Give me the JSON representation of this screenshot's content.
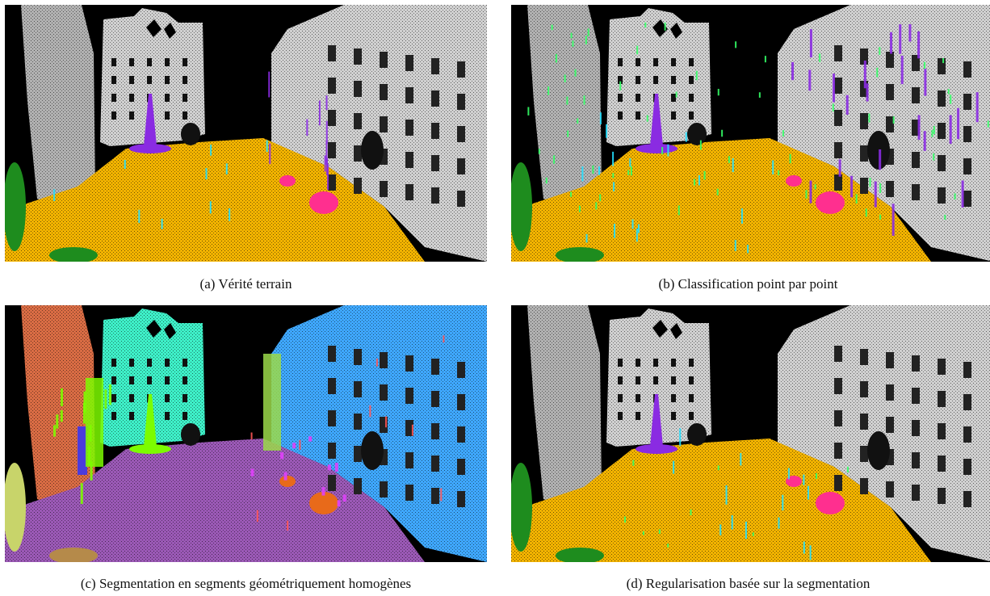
{
  "figure": {
    "panels": [
      {
        "caption": "(a) Vérité terrain",
        "scheme": "classes"
      },
      {
        "caption": "(b) Classification point par point",
        "scheme": "noisy"
      },
      {
        "caption": "(c) Segmentation en segments géométriquement homogènes",
        "scheme": "segments"
      },
      {
        "caption": "(d) Regularisation basée sur la segmentation",
        "scheme": "regularized"
      }
    ]
  },
  "colors": {
    "background": "#000000",
    "facade": "#d0d0d0",
    "ground": "#f2b300",
    "pole": "#8a2be2",
    "car": "#ff2f8f",
    "vegetation": "#1e8c1e",
    "noise_green": "#33ff66",
    "noise_cyan": "#22e0ff",
    "seg_left_building": "#ff7f50",
    "seg_center_building": "#3ef0c8",
    "seg_right_building": "#3fa8ff",
    "seg_ground": "#9b59b6",
    "seg_green": "#7cfc00",
    "seg_orange": "#e86a1a",
    "seg_magenta": "#e040fb"
  }
}
